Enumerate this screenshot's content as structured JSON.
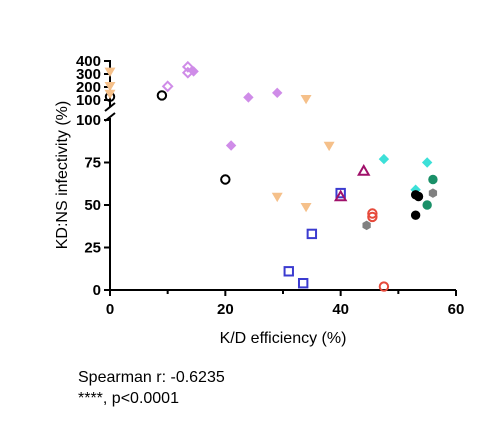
{
  "chart_data": {
    "type": "scatter",
    "title": "",
    "xlabel": "K/D efficiency (%)",
    "ylabel": "KD:NS infectivity (%)",
    "xlim": [
      0,
      60
    ],
    "ylim_lower": [
      0,
      100
    ],
    "ylim_upper": [
      100,
      400
    ],
    "y_axis_broken": true,
    "x_ticks": [
      "0",
      "20",
      "40",
      "60"
    ],
    "y_ticks_lower": [
      "0",
      "25",
      "50",
      "75",
      "100"
    ],
    "y_ticks_upper": [
      "100",
      "200",
      "300",
      "400"
    ],
    "grid": false,
    "legend": "none",
    "series": [
      {
        "marker": "circle-open",
        "color": "#000000",
        "points": [
          [
            0,
            125
          ],
          [
            9,
            135
          ],
          [
            20,
            65
          ]
        ]
      },
      {
        "marker": "triangle-down",
        "color": "#f5c08a",
        "points": [
          [
            0,
            320
          ],
          [
            0,
            210
          ],
          [
            0,
            150
          ],
          [
            34,
            110
          ],
          [
            38,
            85
          ],
          [
            29,
            55
          ],
          [
            34,
            49
          ]
        ]
      },
      {
        "marker": "diamond-open",
        "color": "#cf8ce8",
        "points": [
          [
            10,
            205
          ],
          [
            13.5,
            355
          ],
          [
            13.5,
            310
          ]
        ]
      },
      {
        "marker": "diamond",
        "color": "#cf8ce8",
        "points": [
          [
            14.5,
            320
          ],
          [
            21,
            85
          ],
          [
            24,
            120
          ],
          [
            29,
            155
          ]
        ]
      },
      {
        "marker": "square-open",
        "color": "#3b3bd0",
        "points": [
          [
            31,
            11
          ],
          [
            33.5,
            4
          ],
          [
            35,
            33
          ],
          [
            40,
            57
          ]
        ]
      },
      {
        "marker": "triangle-up-open",
        "color": "#a0106a",
        "points": [
          [
            40,
            55
          ],
          [
            44,
            70
          ]
        ]
      },
      {
        "marker": "circle-open",
        "color": "#e64a3b",
        "points": [
          [
            45.5,
            45
          ],
          [
            45.5,
            43
          ],
          [
            47.5,
            2
          ]
        ]
      },
      {
        "marker": "hexagon",
        "color": "#808080",
        "points": [
          [
            44.5,
            38
          ],
          [
            56,
            57
          ]
        ]
      },
      {
        "marker": "diamond",
        "color": "#3de0d8",
        "points": [
          [
            47.5,
            77
          ],
          [
            53,
            59
          ],
          [
            55,
            75
          ]
        ]
      },
      {
        "marker": "circle",
        "color": "#000000",
        "points": [
          [
            53,
            56
          ],
          [
            53.5,
            55
          ],
          [
            53,
            44
          ]
        ]
      },
      {
        "marker": "circle",
        "color": "#1a9068",
        "points": [
          [
            55,
            50
          ],
          [
            56,
            65
          ]
        ]
      }
    ]
  },
  "stats": {
    "line1": "Spearman r: -0.6235",
    "line2": "****, p<0.0001"
  }
}
